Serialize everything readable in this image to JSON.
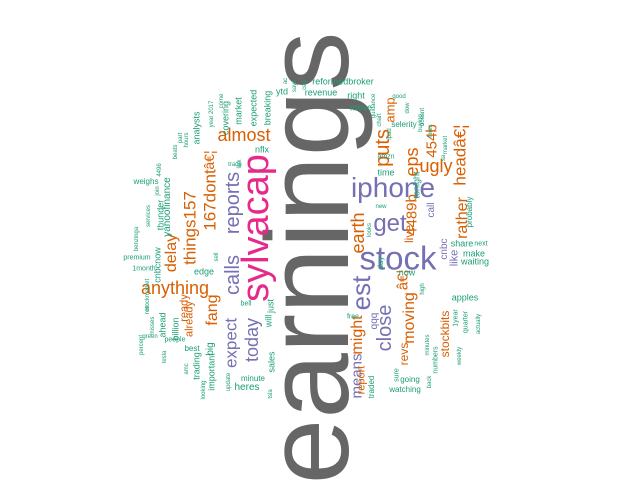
{
  "colors": {
    "gray": "#666666",
    "pink": "#e7298a",
    "purple": "#7570b3",
    "orange": "#d95f02",
    "green": "#1b9e77"
  },
  "words": {
    "earnings": "earnings",
    "sylvacap": "sylvacap",
    "stock": "stock",
    "iphone": "iphone",
    "get": "get",
    "est": "est",
    "close": "close",
    "reports": "reports",
    "calls": "calls",
    "today": "today",
    "expect": "expect",
    "almost": "almost",
    "anything": "anything",
    "fang": "fang",
    "things157": "things157",
    "dont": "167dont",
    "puts": "puts",
    "eps": "eps",
    "earth": "earth",
    "rather": "rather",
    "ugly": "ugly",
    "heada": "headâ€¦",
    "b4489": "4489b",
    "b454": "454b",
    "moving": "moving",
    "might": "might",
    "means": "means",
    "delay": "delay",
    "a_euro": "â€¦",
    "amp": "amp",
    "live": "live",
    "stockbits": "stockbits",
    "revs": "revs",
    "euro_sym": "â€¦",
    "yahoofinance": "yahoofinance",
    "ready": "ready",
    "already": "already",
    "big": "big",
    "heres": "heres",
    "sales": "sales",
    "will": "will",
    "just": "just",
    "market": "market",
    "breaking": "breaking",
    "expected": "expected",
    "covering": "covering",
    "analysts": "analysts",
    "ytd": "ytd",
    "revenue": "revenue",
    "reformedbroker": "reformedbroker",
    "right": "right",
    "move": "move",
    "cnbc": "cnbc",
    "tonight": "tonight",
    "call": "call",
    "like": "like",
    "waiting": "waiting",
    "make": "make",
    "share": "share",
    "apples": "apples",
    "probably": "probably",
    "report": "report",
    "qqq": "qqq",
    "now": "now",
    "day": "day",
    "time": "time",
    "going": "going",
    "watching": "watching",
    "traded": "traded",
    "nflx": "nflx",
    "ahead": "ahead",
    "billion": "billion",
    "trading": "trading",
    "important": "important",
    "best": "best",
    "edge": "edge",
    "cnbcnow": "cnbcnow",
    "thunder": "thunder",
    "weighs": "weighs",
    "people": "people",
    "month": "1month",
    "premium": "premium",
    "minute": "minute",
    "bell": "bell",
    "selerity": "selerity",
    "numbers": "numbers",
    "sure": "sure",
    "year": "1year",
    "quarter": "quarter",
    "weekly": "weekly",
    "next": "next",
    "free": "free",
    "amzn": "amzn",
    "new": "new",
    "good": "good",
    "dow": "dow",
    "buying": "buying",
    "trade": "trade",
    "year2017": "year 2017",
    "hours": "hours",
    "come": "come",
    "link": "link",
    "tsla": "tsla",
    "ceo": "ceo",
    "services": "services",
    "benzinga": "benzinga",
    "join": "join",
    "beats": "beats",
    "amc": "amc",
    "tesla": "tesla",
    "green": "green",
    "misses": "misses",
    "rev": "rev",
    "sell": "sell",
    "part": "part",
    "n4496": "4496",
    "ac": "ac",
    "back": "back",
    "high": "high",
    "actually": "actually",
    "looking": "looking",
    "percent": "percent",
    "stockmarket": "stockmarket",
    "update": "update",
    "forex": "forex",
    "looks": "looks",
    "says": "says",
    "chart": "chart",
    "guidance": "guidance",
    "minutes": "minutes",
    "market2": "market",
    "doesnt": "doesnt",
    "ipad": "ipad",
    "sa": "sa"
  }
}
